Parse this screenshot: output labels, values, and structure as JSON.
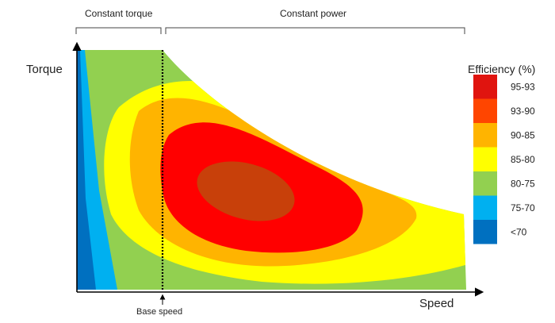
{
  "chart_data": {
    "type": "heatmap",
    "title": "",
    "xlabel": "Speed",
    "ylabel": "Torque",
    "regions": {
      "constant_torque_label": "Constant torque",
      "constant_power_label": "Constant power"
    },
    "base_speed_label": "Base speed",
    "legend": {
      "title": "Efficiency (%)",
      "placement": "right",
      "entries": [
        {
          "label": "95-93",
          "color": "#e0140f"
        },
        {
          "label": "93-90",
          "color": "#ff4500"
        },
        {
          "label": "90-85",
          "color": "#ffb400"
        },
        {
          "label": "85-80",
          "color": "#ffff00"
        },
        {
          "label": "80-75",
          "color": "#92d050"
        },
        {
          "label": "75-70",
          "color": "#00b0f0"
        },
        {
          "label": "<70",
          "color": "#0070c0"
        }
      ]
    },
    "contour_fill_colors": {
      "core": "#c8400a",
      "red": "#ff0000",
      "orange": "#ffb400",
      "yellow": "#ffff00",
      "green": "#92d050",
      "light_blue": "#00b0f0",
      "blue": "#0070c0"
    },
    "grid": false
  }
}
